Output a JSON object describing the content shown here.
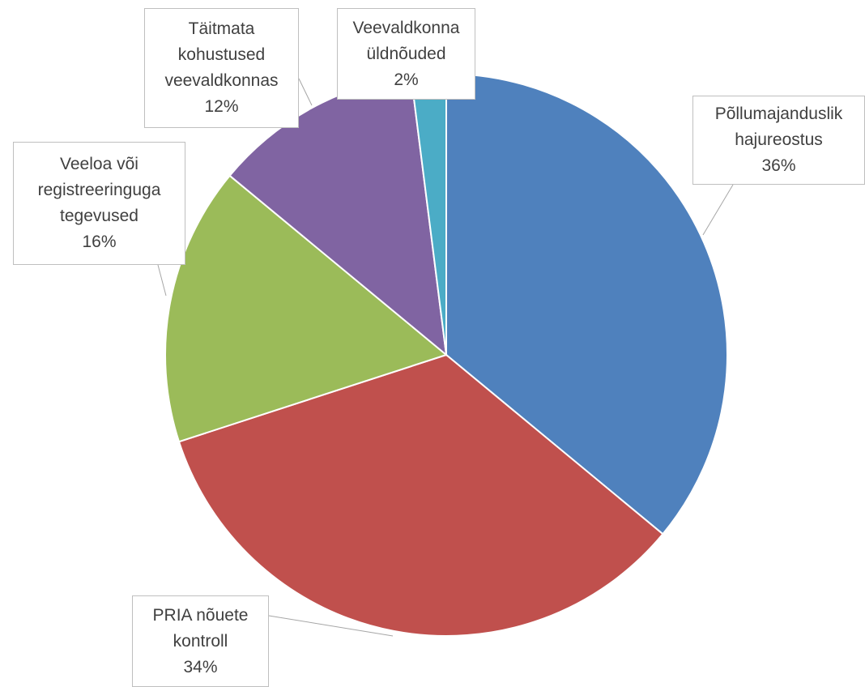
{
  "chart_data": {
    "type": "pie",
    "categories": [
      "Põllumajanduslik hajureostus",
      "PRIA nõuete kontroll",
      "Veeloa või registreeringuga tegevused",
      "Täitmata kohustused veevaldkonnas",
      "Veevaldkonna üldnõuded"
    ],
    "values": [
      36,
      34,
      16,
      12,
      2
    ],
    "value_labels": [
      "36%",
      "34%",
      "16%",
      "12%",
      "2%"
    ],
    "colors": [
      "#4f81bd",
      "#c0504d",
      "#9bbb59",
      "#8064a2",
      "#4bacc6"
    ]
  }
}
